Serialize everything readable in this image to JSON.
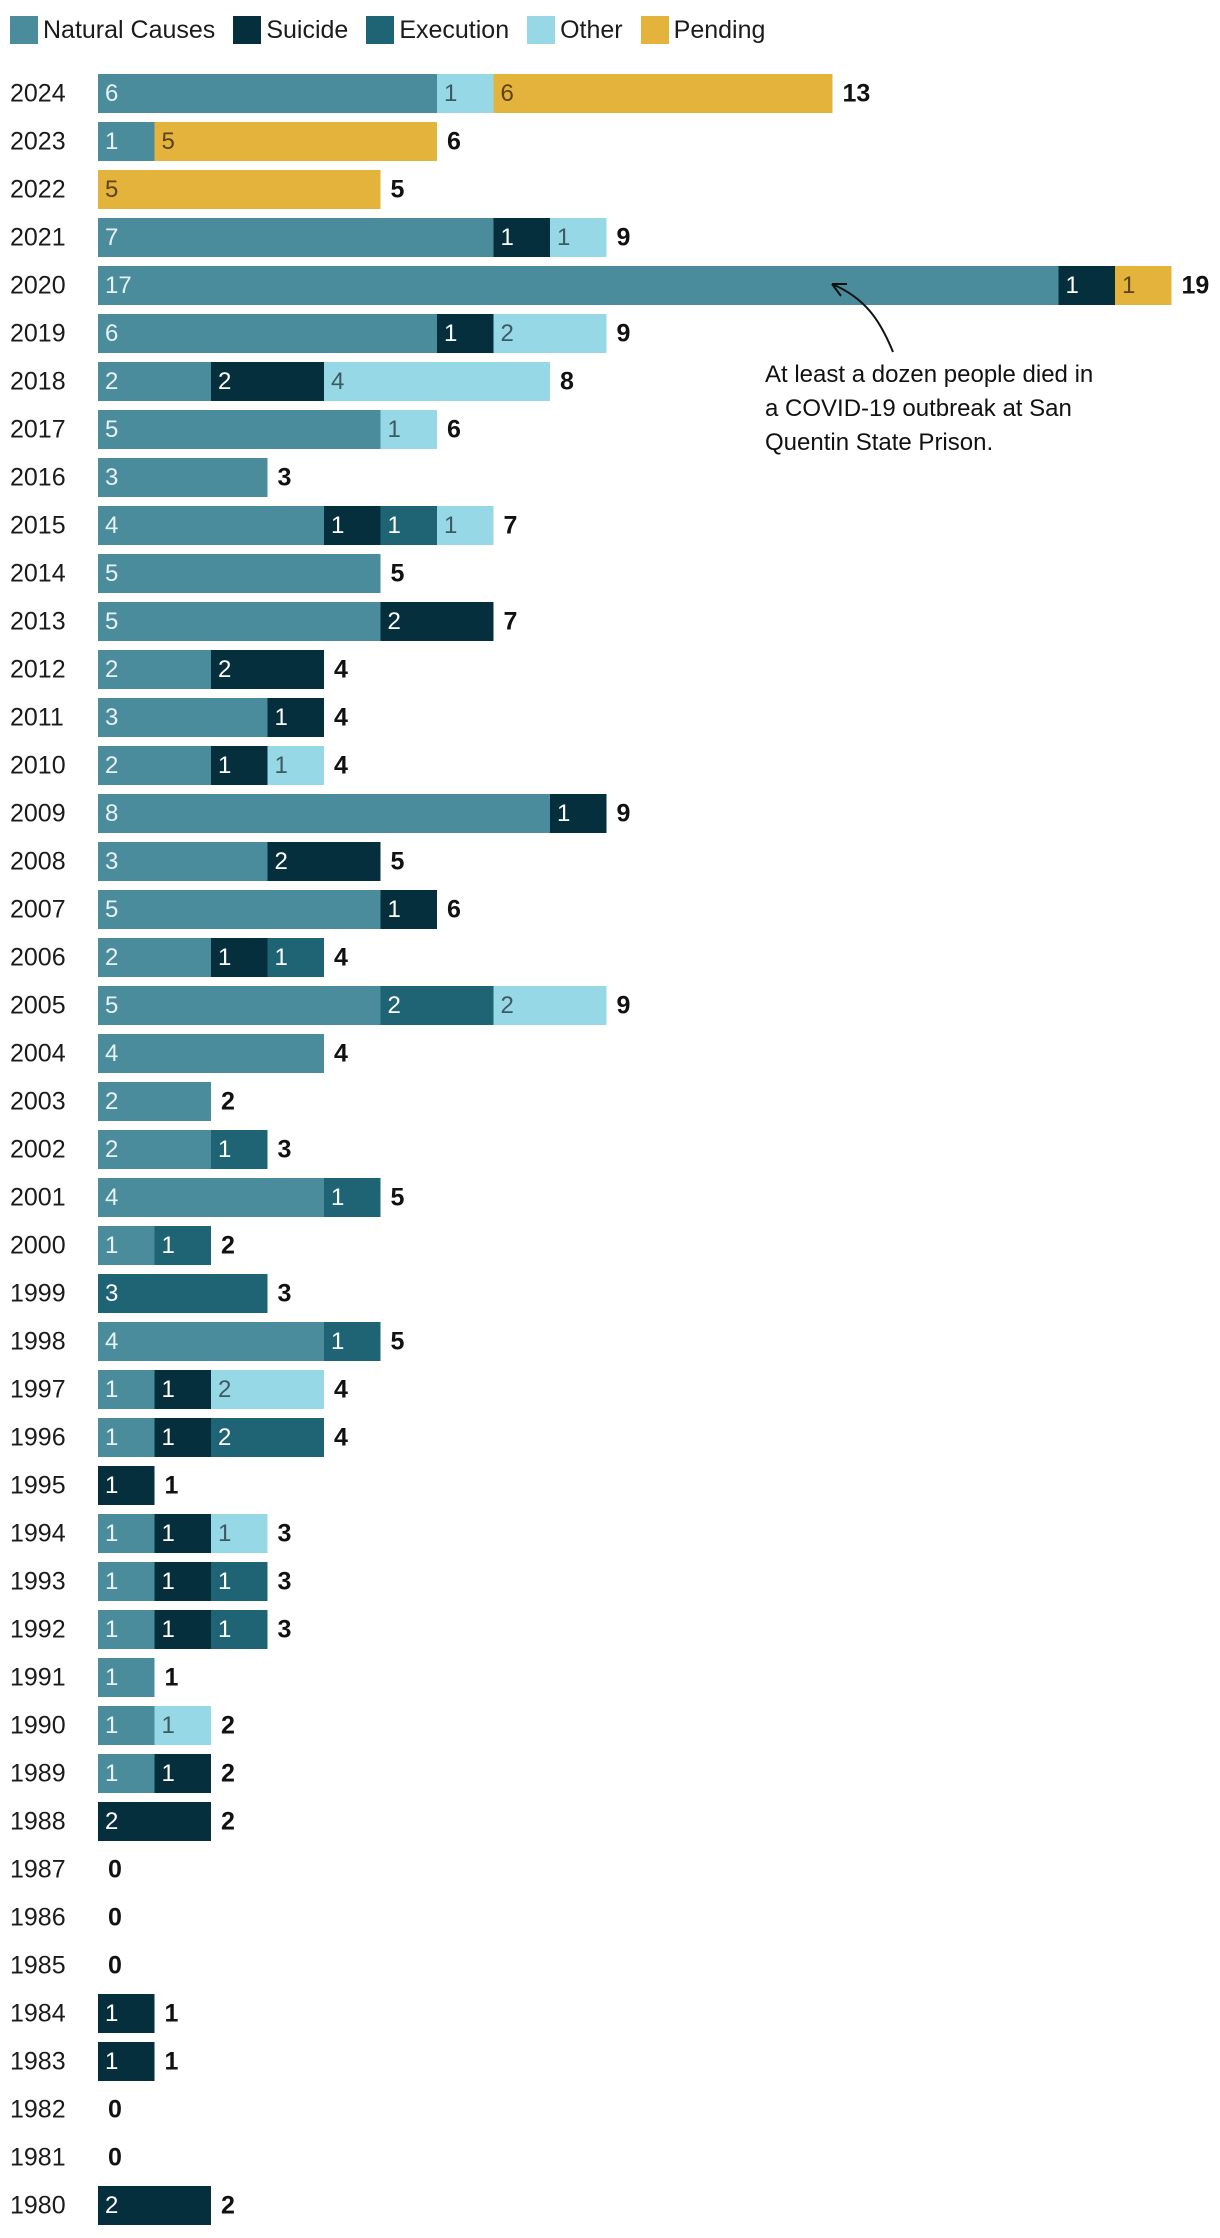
{
  "legend": [
    {
      "name": "Natural Causes",
      "color": "#4a8c9c"
    },
    {
      "name": "Suicide",
      "color": "#062f3d"
    },
    {
      "name": "Execution",
      "color": "#1e6474"
    },
    {
      "name": "Other",
      "color": "#97d8e6"
    },
    {
      "name": "Pending",
      "color": "#e3b33c"
    }
  ],
  "annotation": "At least a dozen people died in a COVID-19 outbreak at San Quentin State Prison.",
  "chart_data": {
    "type": "bar",
    "orientation": "horizontal",
    "stacked": true,
    "categories": [
      "2024",
      "2023",
      "2022",
      "2021",
      "2020",
      "2019",
      "2018",
      "2017",
      "2016",
      "2015",
      "2014",
      "2013",
      "2012",
      "2011",
      "2010",
      "2009",
      "2008",
      "2007",
      "2006",
      "2005",
      "2004",
      "2003",
      "2002",
      "2001",
      "2000",
      "1999",
      "1998",
      "1997",
      "1996",
      "1995",
      "1994",
      "1993",
      "1992",
      "1991",
      "1990",
      "1989",
      "1988",
      "1987",
      "1986",
      "1985",
      "1984",
      "1983",
      "1982",
      "1981",
      "1980"
    ],
    "series": [
      {
        "name": "Natural Causes",
        "values": [
          6,
          1,
          0,
          7,
          17,
          6,
          2,
          5,
          3,
          4,
          5,
          5,
          2,
          3,
          2,
          8,
          3,
          5,
          2,
          5,
          4,
          2,
          2,
          4,
          1,
          0,
          4,
          1,
          1,
          0,
          1,
          1,
          1,
          1,
          1,
          1,
          0,
          0,
          0,
          0,
          0,
          0,
          0,
          0,
          0
        ]
      },
      {
        "name": "Suicide",
        "values": [
          0,
          0,
          0,
          1,
          1,
          1,
          2,
          0,
          0,
          1,
          0,
          2,
          2,
          1,
          1,
          1,
          2,
          1,
          1,
          0,
          0,
          0,
          0,
          0,
          0,
          0,
          0,
          1,
          1,
          1,
          1,
          1,
          1,
          0,
          0,
          1,
          2,
          0,
          0,
          0,
          1,
          1,
          0,
          0,
          2
        ]
      },
      {
        "name": "Execution",
        "values": [
          0,
          0,
          0,
          0,
          0,
          0,
          0,
          0,
          0,
          1,
          0,
          0,
          0,
          0,
          0,
          0,
          0,
          0,
          1,
          2,
          0,
          0,
          1,
          1,
          1,
          3,
          1,
          0,
          2,
          0,
          0,
          1,
          1,
          0,
          0,
          0,
          0,
          0,
          0,
          0,
          0,
          0,
          0,
          0,
          0
        ]
      },
      {
        "name": "Other",
        "values": [
          1,
          0,
          0,
          1,
          0,
          2,
          4,
          1,
          0,
          1,
          0,
          0,
          0,
          0,
          1,
          0,
          0,
          0,
          0,
          2,
          0,
          0,
          0,
          0,
          0,
          0,
          0,
          2,
          0,
          0,
          1,
          0,
          0,
          0,
          1,
          0,
          0,
          0,
          0,
          0,
          0,
          0,
          0,
          0,
          0
        ]
      },
      {
        "name": "Pending",
        "values": [
          6,
          5,
          5,
          0,
          1,
          0,
          0,
          0,
          0,
          0,
          0,
          0,
          0,
          0,
          0,
          0,
          0,
          0,
          0,
          0,
          0,
          0,
          0,
          0,
          0,
          0,
          0,
          0,
          0,
          0,
          0,
          0,
          0,
          0,
          0,
          0,
          0,
          0,
          0,
          0,
          0,
          0,
          0,
          0,
          0
        ]
      }
    ],
    "totals": [
      13,
      6,
      5,
      9,
      19,
      9,
      8,
      6,
      3,
      7,
      5,
      7,
      4,
      4,
      4,
      9,
      5,
      6,
      4,
      9,
      4,
      2,
      3,
      5,
      2,
      3,
      5,
      4,
      4,
      1,
      3,
      3,
      3,
      1,
      2,
      2,
      2,
      0,
      0,
      0,
      1,
      1,
      0,
      0,
      2
    ],
    "xlim": [
      0,
      19
    ],
    "grid": false,
    "legend_position": "top-left"
  }
}
